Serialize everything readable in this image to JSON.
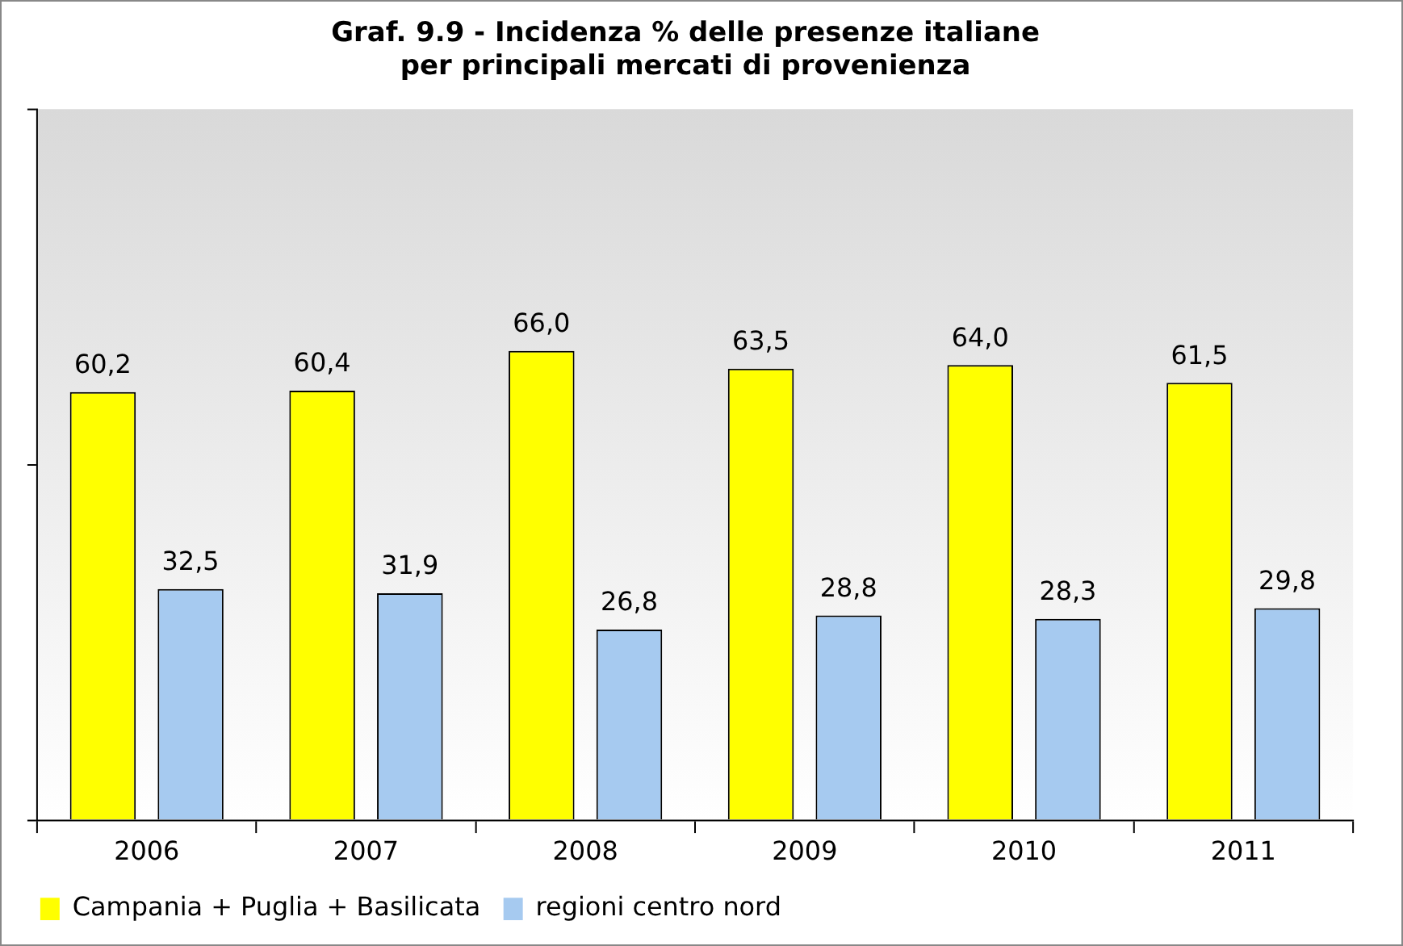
{
  "chart_data": {
    "type": "bar",
    "title": "Graf. 9.9 - Incidenza % delle presenze italiane\nper principali mercati di provenienza",
    "categories": [
      "2006",
      "2007",
      "2008",
      "2009",
      "2010",
      "2011"
    ],
    "series": [
      {
        "name": "Campania + Puglia + Basilicata",
        "color": "#ffff00",
        "values": [
          60.2,
          60.4,
          66.0,
          63.5,
          64.0,
          61.5
        ],
        "value_labels": [
          "60,2",
          "60,4",
          "66,0",
          "63,5",
          "64,0",
          "61,5"
        ]
      },
      {
        "name": "regioni centro nord",
        "color": "#a6caf0",
        "values": [
          32.5,
          31.9,
          26.8,
          28.8,
          28.3,
          29.8
        ],
        "value_labels": [
          "32,5",
          "31,9",
          "26,8",
          "28,8",
          "28,3",
          "29,8"
        ]
      }
    ],
    "tick_labels": "x",
    "grid": false,
    "legend": "bottom"
  }
}
